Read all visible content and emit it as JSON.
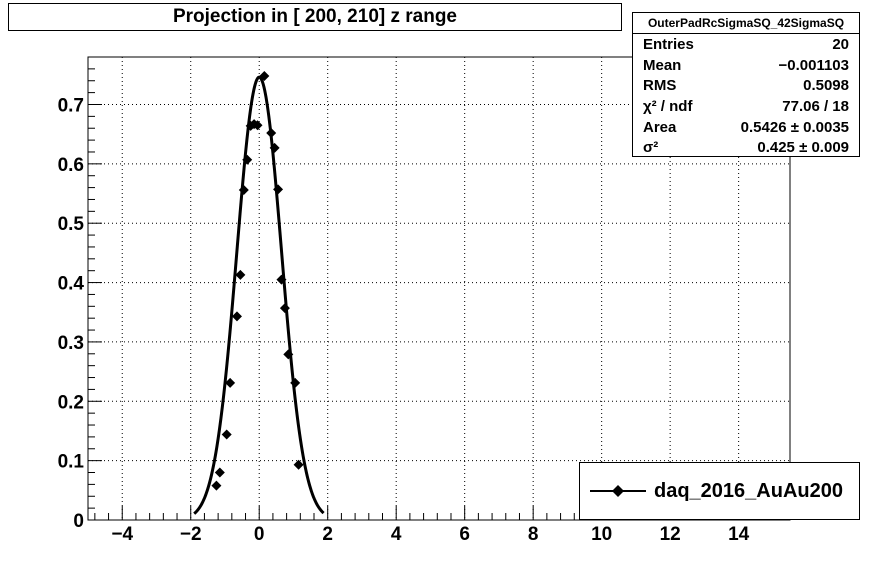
{
  "title": "Projection in [ 200, 210] z range",
  "stats": {
    "name": "OuterPadRcSigmaSQ_42SigmaSQ",
    "rows": [
      {
        "label": "Entries",
        "value": "20"
      },
      {
        "label": "Mean",
        "value": "−0.001103"
      },
      {
        "label": "RMS",
        "value": "0.5098"
      },
      {
        "label": "χ² / ndf",
        "value": "77.06 / 18"
      },
      {
        "label": "Area",
        "value": "0.5426 ± 0.0035"
      },
      {
        "label": "σ²",
        "value": "0.425 ± 0.009"
      }
    ]
  },
  "legend": {
    "label": "daq_2016_AuAu200"
  },
  "chart_data": {
    "type": "scatter",
    "title": "Projection in [ 200, 210] z range",
    "xlim": [
      -5,
      15.5
    ],
    "ylim": [
      0,
      0.78
    ],
    "xticks": [
      -4,
      -2,
      0,
      2,
      4,
      6,
      8,
      10,
      12,
      14
    ],
    "xticklabels": [
      "−4",
      "−2",
      "0",
      "2",
      "4",
      "6",
      "8",
      "10",
      "12",
      "14"
    ],
    "yticks": [
      0,
      0.1,
      0.2,
      0.3,
      0.4,
      0.5,
      0.6,
      0.7
    ],
    "yticklabels": [
      "0",
      "0.1",
      "0.2",
      "0.3",
      "0.4",
      "0.5",
      "0.6",
      "0.7"
    ],
    "grid": true,
    "series": [
      {
        "name": "daq_2016_AuAu200",
        "x": [
          -1.25,
          -1.15,
          -0.95,
          -0.85,
          -0.65,
          -0.55,
          -0.45,
          -0.35,
          -0.25,
          -0.15,
          -0.05,
          0.15,
          0.35,
          0.45,
          0.55,
          0.65,
          0.75,
          0.85,
          1.05,
          1.15
        ],
        "y": [
          0.058,
          0.08,
          0.144,
          0.231,
          0.343,
          0.413,
          0.556,
          0.607,
          0.664,
          0.667,
          0.665,
          0.748,
          0.652,
          0.627,
          0.557,
          0.405,
          0.357,
          0.279,
          0.231,
          0.093
        ],
        "marker": "diamond",
        "color": "#000000"
      }
    ],
    "fit": {
      "type": "gaussian",
      "area": 0.5426,
      "sigma2": 0.425,
      "color": "#000000"
    },
    "legend_position": "bottom-right"
  }
}
